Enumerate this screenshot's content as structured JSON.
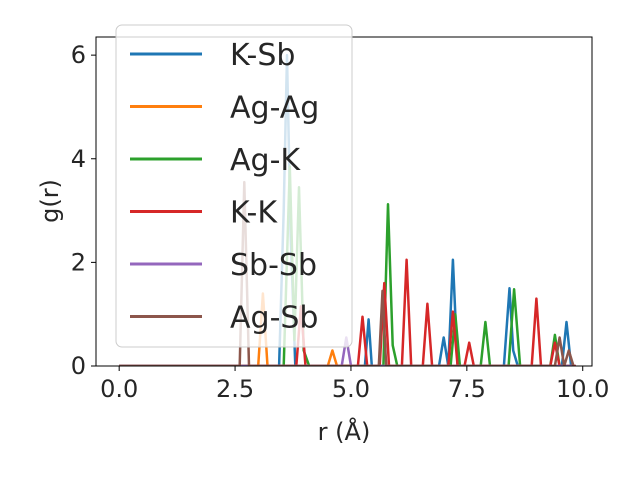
{
  "chart_data": {
    "type": "line",
    "xlabel": "r (Å)",
    "ylabel": "g(r)",
    "xlim": [
      -0.5,
      10.2
    ],
    "ylim": [
      0,
      6.35
    ],
    "xticks": [
      0.0,
      2.5,
      5.0,
      7.5,
      10.0
    ],
    "xtick_labels": [
      "0.0",
      "2.5",
      "5.0",
      "7.5",
      "10.0"
    ],
    "yticks": [
      0,
      2,
      4,
      6
    ],
    "ytick_labels": [
      "0",
      "2",
      "4",
      "6"
    ],
    "grid": false,
    "legend_position": "upper-left",
    "series": [
      {
        "name": "K-Sb",
        "color": "#1f77b4",
        "x": [
          0.0,
          3.45,
          3.55,
          3.62,
          3.7,
          3.8,
          5.3,
          5.38,
          5.45,
          6.9,
          7.0,
          7.1,
          7.2,
          7.3,
          8.3,
          8.42,
          8.5,
          8.6,
          9.55,
          9.65,
          9.75,
          9.85
        ],
        "y": [
          0,
          0,
          3.0,
          6.0,
          2.5,
          0,
          0,
          0.9,
          0,
          0,
          0.55,
          0,
          2.05,
          0,
          0,
          1.5,
          0.3,
          0,
          0,
          0.85,
          0,
          0
        ]
      },
      {
        "name": "Ag-Ag",
        "color": "#ff7f0e",
        "x": [
          0.0,
          3.0,
          3.1,
          3.2,
          4.5,
          4.6,
          4.7,
          9.8
        ],
        "y": [
          0,
          0,
          1.4,
          0,
          0,
          0.3,
          0,
          0
        ]
      },
      {
        "name": "Ag-K",
        "color": "#2ca02c",
        "x": [
          0.0,
          3.55,
          3.68,
          3.78,
          3.88,
          3.98,
          4.1,
          5.7,
          5.8,
          5.9,
          6.0,
          7.15,
          7.25,
          7.35,
          7.8,
          7.9,
          8.0,
          8.4,
          8.52,
          8.65,
          9.3,
          9.4,
          9.5,
          9.8
        ],
        "y": [
          0,
          0,
          3.85,
          0.5,
          3.45,
          0.3,
          0,
          0,
          3.12,
          0.4,
          0,
          0,
          1.0,
          0,
          0,
          0.85,
          0,
          0,
          1.48,
          0,
          0,
          0.6,
          0,
          0
        ]
      },
      {
        "name": "K-K",
        "color": "#d62728",
        "x": [
          0.0,
          3.82,
          3.92,
          4.02,
          5.15,
          5.25,
          5.35,
          5.62,
          5.72,
          5.82,
          6.1,
          6.2,
          6.3,
          6.55,
          6.65,
          6.75,
          7.1,
          7.2,
          7.3,
          7.45,
          7.55,
          7.65,
          8.9,
          9.0,
          9.1,
          9.3,
          9.4,
          9.5,
          9.85
        ],
        "y": [
          0,
          0,
          1.15,
          0,
          0,
          0.95,
          0,
          0,
          1.6,
          0,
          0,
          2.05,
          0,
          0,
          1.2,
          0,
          0,
          1.05,
          0,
          0,
          0.45,
          0,
          0,
          1.3,
          0,
          0,
          0.45,
          0,
          0
        ]
      },
      {
        "name": "Sb-Sb",
        "color": "#9467bd",
        "x": [
          0.0,
          4.8,
          4.9,
          5.0,
          9.8
        ],
        "y": [
          0,
          0,
          0.55,
          0,
          0
        ]
      },
      {
        "name": "Ag-Sb",
        "color": "#8c564b",
        "x": [
          0.0,
          2.6,
          2.7,
          2.8,
          5.6,
          5.68,
          5.76,
          9.4,
          9.5,
          9.6,
          9.7,
          9.8
        ],
        "y": [
          0,
          0,
          3.55,
          0,
          0,
          1.45,
          0,
          0,
          0.55,
          0,
          0.3,
          0
        ]
      }
    ]
  }
}
